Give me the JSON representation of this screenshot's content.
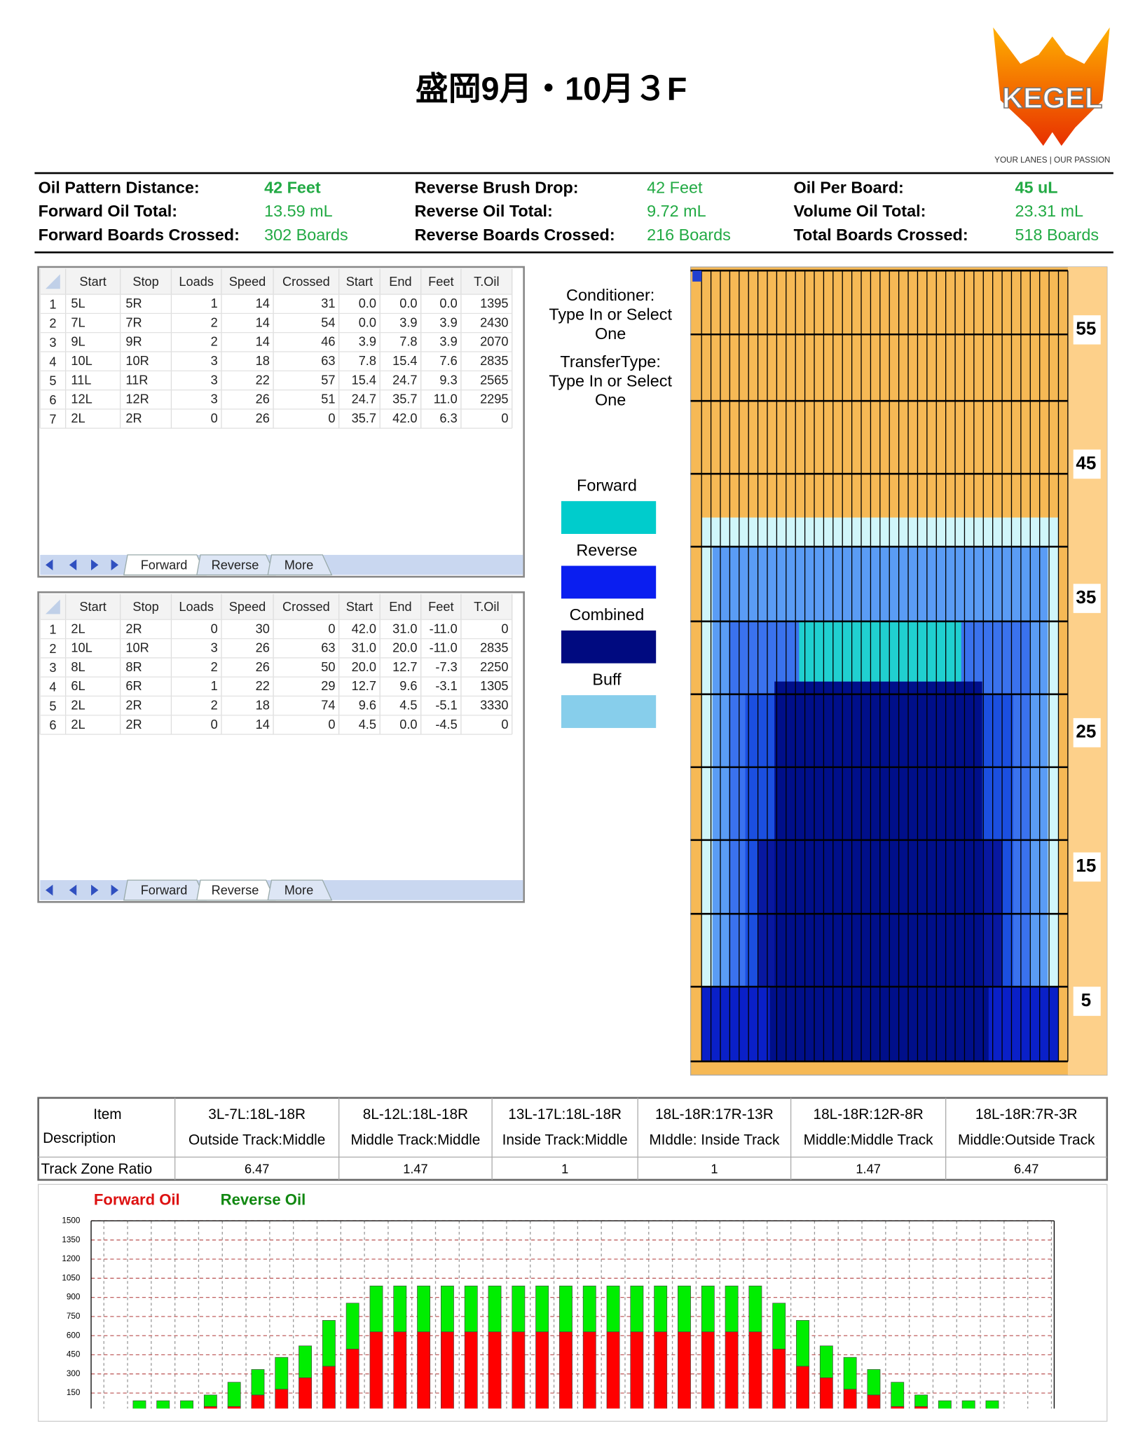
{
  "header": {
    "title": "盛岡9月・10月３F",
    "logo": "KEGEL",
    "tagline": "YOUR LANES | OUR PASSION"
  },
  "summary": [
    [
      {
        "label": "Oil Pattern Distance:",
        "value": "42 Feet"
      },
      {
        "label": "Forward Oil Total:",
        "value": "13.59 mL"
      },
      {
        "label": "Forward Boards Crossed:",
        "value": "302 Boards"
      }
    ],
    [
      {
        "label": "Reverse Brush Drop:",
        "value": "42 Feet"
      },
      {
        "label": "Reverse Oil Total:",
        "value": "9.72 mL"
      },
      {
        "label": "Reverse Boards Crossed:",
        "value": "216 Boards"
      }
    ],
    [
      {
        "label": "Oil Per Board:",
        "value": "45 uL"
      },
      {
        "label": "Volume Oil Total:",
        "value": "23.31 mL"
      },
      {
        "label": "Total Boards Crossed:",
        "value": "518 Boards"
      }
    ]
  ],
  "forward_table": {
    "columns": [
      "Start",
      "Stop",
      "Loads",
      "Speed",
      "Crossed",
      "Start",
      "End",
      "Feet",
      "T.Oil"
    ],
    "rows": [
      [
        "1",
        "5L",
        "5R",
        "1",
        "14",
        "31",
        "0.0",
        "0.0",
        "0.0",
        "1395"
      ],
      [
        "2",
        "7L",
        "7R",
        "2",
        "14",
        "54",
        "0.0",
        "3.9",
        "3.9",
        "2430"
      ],
      [
        "3",
        "9L",
        "9R",
        "2",
        "14",
        "46",
        "3.9",
        "7.8",
        "3.9",
        "2070"
      ],
      [
        "4",
        "10L",
        "10R",
        "3",
        "18",
        "63",
        "7.8",
        "15.4",
        "7.6",
        "2835"
      ],
      [
        "5",
        "11L",
        "11R",
        "3",
        "22",
        "57",
        "15.4",
        "24.7",
        "9.3",
        "2565"
      ],
      [
        "6",
        "12L",
        "12R",
        "3",
        "26",
        "51",
        "24.7",
        "35.7",
        "11.0",
        "2295"
      ],
      [
        "7",
        "2L",
        "2R",
        "0",
        "26",
        "0",
        "35.7",
        "42.0",
        "6.3",
        "0"
      ]
    ],
    "tabs": [
      "Forward",
      "Reverse",
      "More"
    ],
    "active_tab": 0
  },
  "reverse_table": {
    "columns": [
      "Start",
      "Stop",
      "Loads",
      "Speed",
      "Crossed",
      "Start",
      "End",
      "Feet",
      "T.Oil"
    ],
    "rows": [
      [
        "1",
        "2L",
        "2R",
        "0",
        "30",
        "0",
        "42.0",
        "31.0",
        "-11.0",
        "0"
      ],
      [
        "2",
        "10L",
        "10R",
        "3",
        "26",
        "63",
        "31.0",
        "20.0",
        "-11.0",
        "2835"
      ],
      [
        "3",
        "8L",
        "8R",
        "2",
        "26",
        "50",
        "20.0",
        "12.7",
        "-7.3",
        "2250"
      ],
      [
        "4",
        "6L",
        "6R",
        "1",
        "22",
        "29",
        "12.7",
        "9.6",
        "-3.1",
        "1305"
      ],
      [
        "5",
        "2L",
        "2R",
        "2",
        "18",
        "74",
        "9.6",
        "4.5",
        "-5.1",
        "3330"
      ],
      [
        "6",
        "2L",
        "2R",
        "0",
        "14",
        "0",
        "4.5",
        "0.0",
        "-4.5",
        "0"
      ]
    ],
    "tabs": [
      "Forward",
      "Reverse",
      "More"
    ],
    "active_tab": 1
  },
  "settings": {
    "conditioner_label": "Conditioner:",
    "conditioner_value": "Type In or Select One",
    "transfer_label": "TransferType:",
    "transfer_value": "Type In or Select One"
  },
  "legend": [
    {
      "label": "Forward",
      "color": "#00cccc"
    },
    {
      "label": "Reverse",
      "color": "#0a1ef0"
    },
    {
      "label": "Combined",
      "color": "#000a80"
    },
    {
      "label": "Buff",
      "color": "#87ceeb"
    }
  ],
  "lane": {
    "labels": [
      "55",
      "45",
      "35",
      "25",
      "15",
      "5"
    ]
  },
  "zone_table": {
    "row_header": [
      "Item",
      "Description"
    ],
    "ratio_label": "Track Zone Ratio",
    "columns": [
      {
        "range": "3L-7L:18L-18R",
        "zone": "Outside Track:Middle",
        "ratio": "6.47"
      },
      {
        "range": "8L-12L:18L-18R",
        "zone": "Middle Track:Middle",
        "ratio": "1.47"
      },
      {
        "range": "13L-17L:18L-18R",
        "zone": "Inside Track:Middle",
        "ratio": "1"
      },
      {
        "range": "18L-18R:17R-13R",
        "zone": "MIddle: Inside Track",
        "ratio": "1"
      },
      {
        "range": "18L-18R:12R-8R",
        "zone": "Middle:Middle Track",
        "ratio": "1.47"
      },
      {
        "range": "18L-18R:7R-3R",
        "zone": "Middle:Outside Track",
        "ratio": "6.47"
      }
    ]
  },
  "oil_chart": {
    "type": "bar",
    "stacked": true,
    "ylim": [
      0,
      1500
    ],
    "yticks": [
      150,
      300,
      450,
      600,
      750,
      900,
      1050,
      1200,
      1350,
      1500
    ],
    "grid": true,
    "series": [
      {
        "name": "Forward Oil",
        "color": "#ff0000",
        "values": [
          0,
          0,
          0,
          0,
          45,
          45,
          135,
          180,
          270,
          360,
          495,
          630,
          630,
          630,
          630,
          630,
          630,
          630,
          630,
          630,
          630,
          630,
          630,
          630,
          630,
          630,
          630,
          630,
          495,
          360,
          270,
          180,
          135,
          45,
          45,
          0,
          0,
          0,
          0
        ]
      },
      {
        "name": "Reverse Oil",
        "color": "#00ee00",
        "values": [
          0,
          90,
          90,
          90,
          90,
          190,
          200,
          250,
          250,
          360,
          360,
          360,
          360,
          360,
          360,
          360,
          360,
          360,
          360,
          360,
          360,
          360,
          360,
          360,
          360,
          360,
          360,
          360,
          360,
          360,
          250,
          250,
          200,
          190,
          90,
          90,
          90,
          90,
          0
        ]
      }
    ]
  }
}
